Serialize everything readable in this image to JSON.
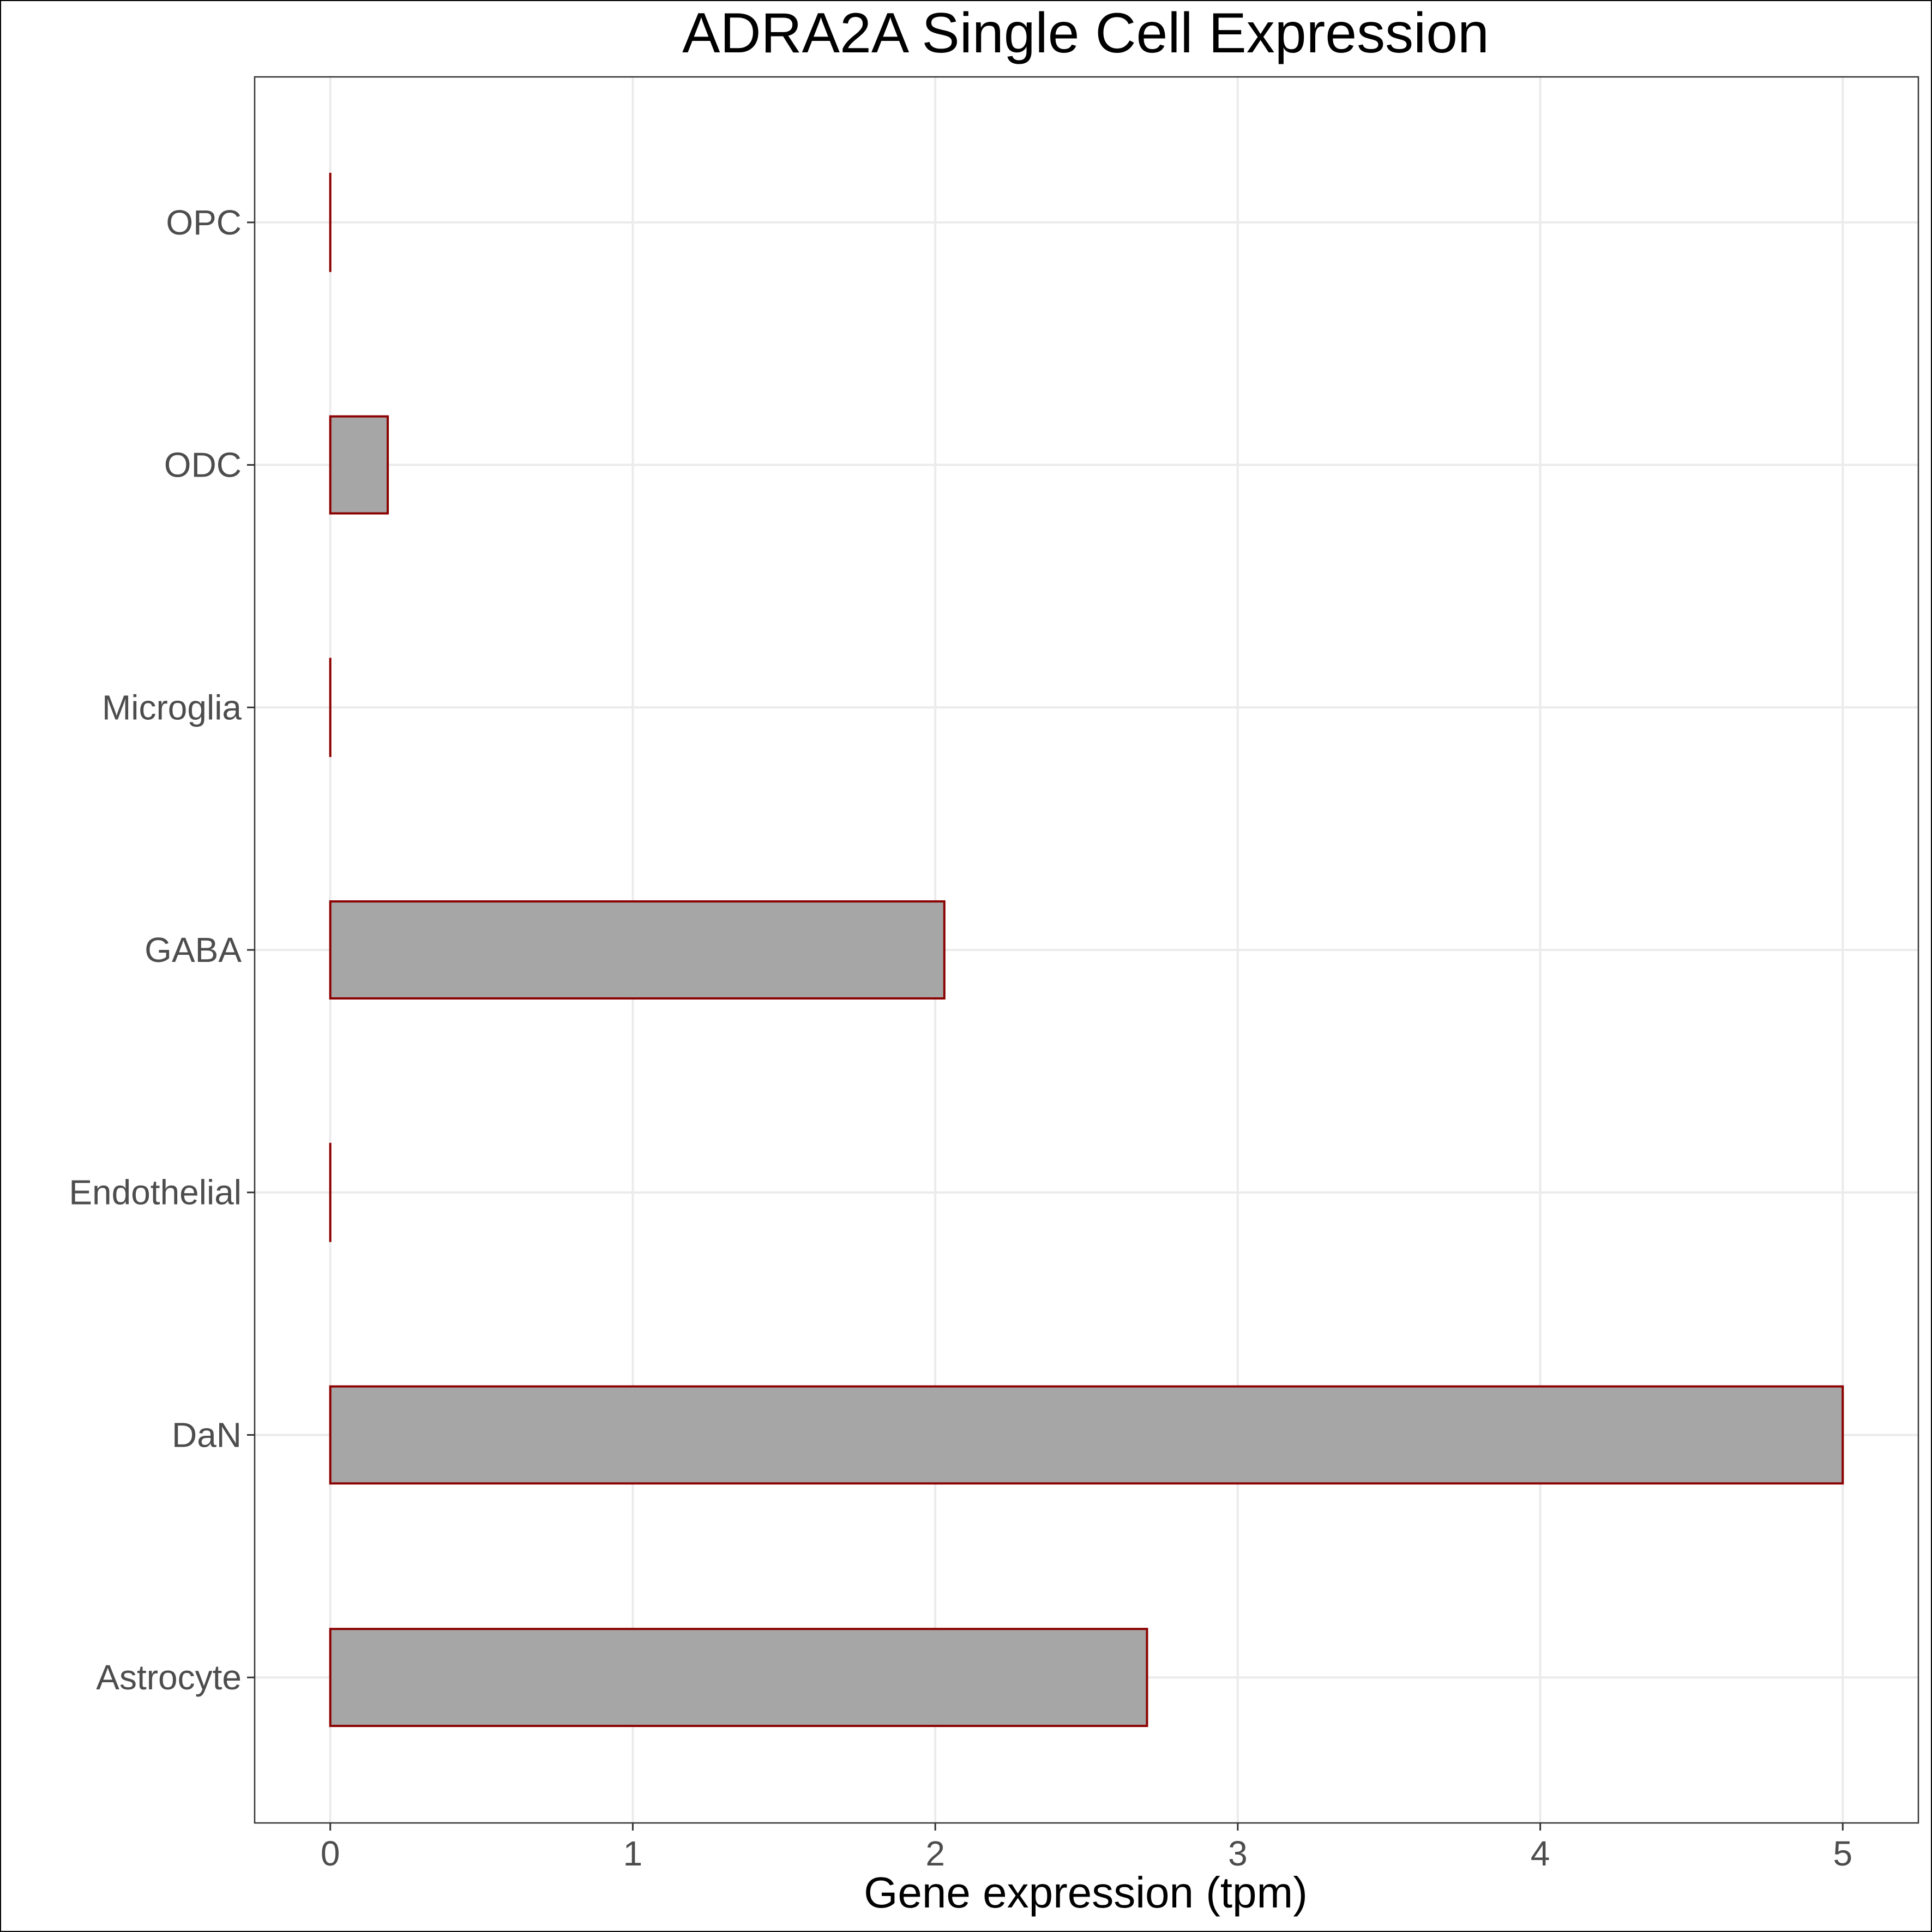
{
  "chart_data": {
    "type": "bar",
    "orientation": "horizontal",
    "title": "ADRA2A Single Cell Expression",
    "xlabel": "Gene expression (tpm)",
    "ylabel": "",
    "categories": [
      "Astrocyte",
      "DaN",
      "Endothelial",
      "GABA",
      "Microglia",
      "ODC",
      "OPC"
    ],
    "values": [
      2.7,
      5.0,
      0.0,
      2.03,
      0.0,
      0.19,
      0.0
    ],
    "xlim": [
      -0.25,
      5.25
    ],
    "xticks": [
      "0",
      "1",
      "2",
      "3",
      "4",
      "5"
    ],
    "grid": true,
    "legend": "none",
    "colors": {
      "bar_fill": "#a6a6a6",
      "bar_stroke": "#8b0000",
      "grid": "#ebebeb"
    }
  }
}
